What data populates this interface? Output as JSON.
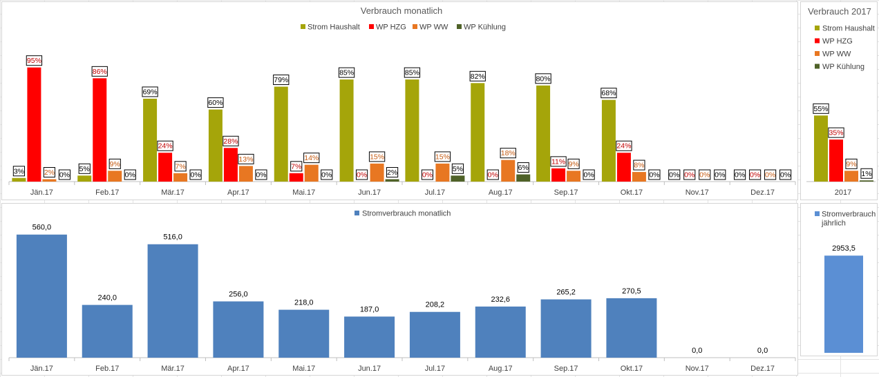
{
  "chart_data": [
    {
      "id": "monthly_share",
      "type": "bar",
      "title": "Verbrauch monatlich",
      "categories": [
        "Jän.17",
        "Feb.17",
        "Mär.17",
        "Apr.17",
        "Mai.17",
        "Jun.17",
        "Jul.17",
        "Aug.17",
        "Sep.17",
        "Okt.17",
        "Nov.17",
        "Dez.17"
      ],
      "series": [
        {
          "name": "Strom Haushalt",
          "color": "#a5a50a",
          "label_color": "#000000",
          "values": [
            3,
            5,
            69,
            60,
            79,
            85,
            85,
            82,
            80,
            68,
            0,
            0
          ]
        },
        {
          "name": "WP HZG",
          "color": "#ff0000",
          "label_color": "#c00000",
          "values": [
            95,
            86,
            24,
            28,
            7,
            0,
            0,
            0,
            11,
            24,
            0,
            0
          ]
        },
        {
          "name": "WP WW",
          "color": "#e87722",
          "label_color": "#c55a11",
          "values": [
            2,
            9,
            7,
            13,
            14,
            15,
            15,
            18,
            9,
            8,
            0,
            0
          ]
        },
        {
          "name": "WP Kühlung",
          "color": "#4f6228",
          "label_color": "#000000",
          "values": [
            0,
            0,
            0,
            0,
            0,
            2,
            5,
            6,
            0,
            0,
            0,
            0
          ]
        }
      ],
      "label_suffix": "%",
      "legend": "top",
      "grid": false
    },
    {
      "id": "year_share",
      "type": "bar",
      "title": "Verbrauch 2017",
      "categories": [
        "2017"
      ],
      "series": [
        {
          "name": "Strom Haushalt",
          "color": "#a5a50a",
          "label_color": "#000000",
          "values": [
            55
          ]
        },
        {
          "name": "WP HZG",
          "color": "#ff0000",
          "label_color": "#c00000",
          "values": [
            35
          ]
        },
        {
          "name": "WP WW",
          "color": "#e87722",
          "label_color": "#c55a11",
          "values": [
            9
          ]
        },
        {
          "name": "WP Kühlung",
          "color": "#4f6228",
          "label_color": "#000000",
          "values": [
            1
          ]
        }
      ],
      "label_suffix": "%",
      "legend": "top-left",
      "grid": false
    },
    {
      "id": "monthly_kwh",
      "type": "bar",
      "categories": [
        "Jän.17",
        "Feb.17",
        "Mär.17",
        "Apr.17",
        "Mai.17",
        "Jun.17",
        "Jul.17",
        "Aug.17",
        "Sep.17",
        "Okt.17",
        "Nov.17",
        "Dez.17"
      ],
      "series": [
        {
          "name": "Stromverbrauch monatlich",
          "color": "#4f81bd",
          "values": [
            560.0,
            240.0,
            516.0,
            256.0,
            218.0,
            187.0,
            208.2,
            232.6,
            265.2,
            270.5,
            0.0,
            0.0
          ],
          "labels": [
            "560,0",
            "240,0",
            "516,0",
            "256,0",
            "218,0",
            "187,0",
            "208,2",
            "232,6",
            "265,2",
            "270,5",
            "0,0",
            "0,0"
          ]
        }
      ],
      "legend": "top",
      "grid": false
    },
    {
      "id": "year_kwh",
      "type": "bar",
      "categories": [
        ""
      ],
      "series": [
        {
          "name": "Stromverbrauch jährlich",
          "legend_lines": [
            "Stromverbrauch",
            "jährlich"
          ],
          "color": "#5b8fd4",
          "values": [
            2953.5
          ],
          "labels": [
            "2953,5"
          ]
        }
      ],
      "legend": "top-left",
      "grid": false
    }
  ]
}
